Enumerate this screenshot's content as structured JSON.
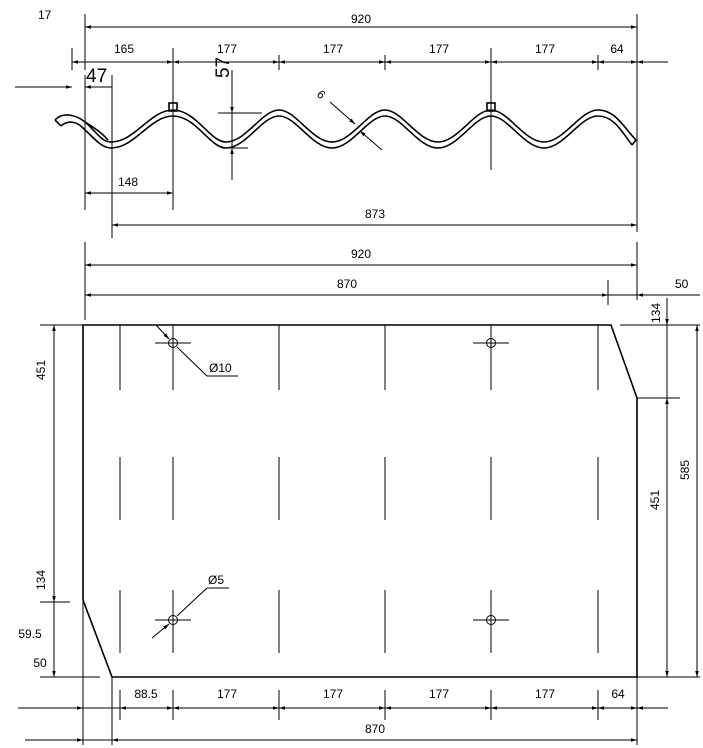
{
  "page_number": "17",
  "profile_view": {
    "total_width": "920",
    "offset_first": "165",
    "pitch_1": "177",
    "pitch_2": "177",
    "pitch_3": "177",
    "pitch_4": "177",
    "end_right": "64",
    "overlap_left": "47",
    "wave_height": "57",
    "thickness": "6",
    "first_hole_offset": "148",
    "cover_width": "873"
  },
  "plan_view": {
    "total_width": "920",
    "top_edge_width": "870",
    "corner_cut_top_width": "50",
    "corner_cut_top_height": "134",
    "left_long_edge": "451",
    "right_long_edge": "451",
    "total_height": "585",
    "corner_cut_bottom_height": "134",
    "bottom_cut_offset": "59.5",
    "bottom_margin": "50",
    "hole_large_label": "Ø10",
    "hole_small_label": "Ø5",
    "bottom_offset_first": "88.5",
    "bottom_pitch_1": "177",
    "bottom_pitch_2": "177",
    "bottom_pitch_3": "177",
    "bottom_pitch_4": "177",
    "bottom_end_right": "64",
    "bottom_total_width": "870"
  }
}
